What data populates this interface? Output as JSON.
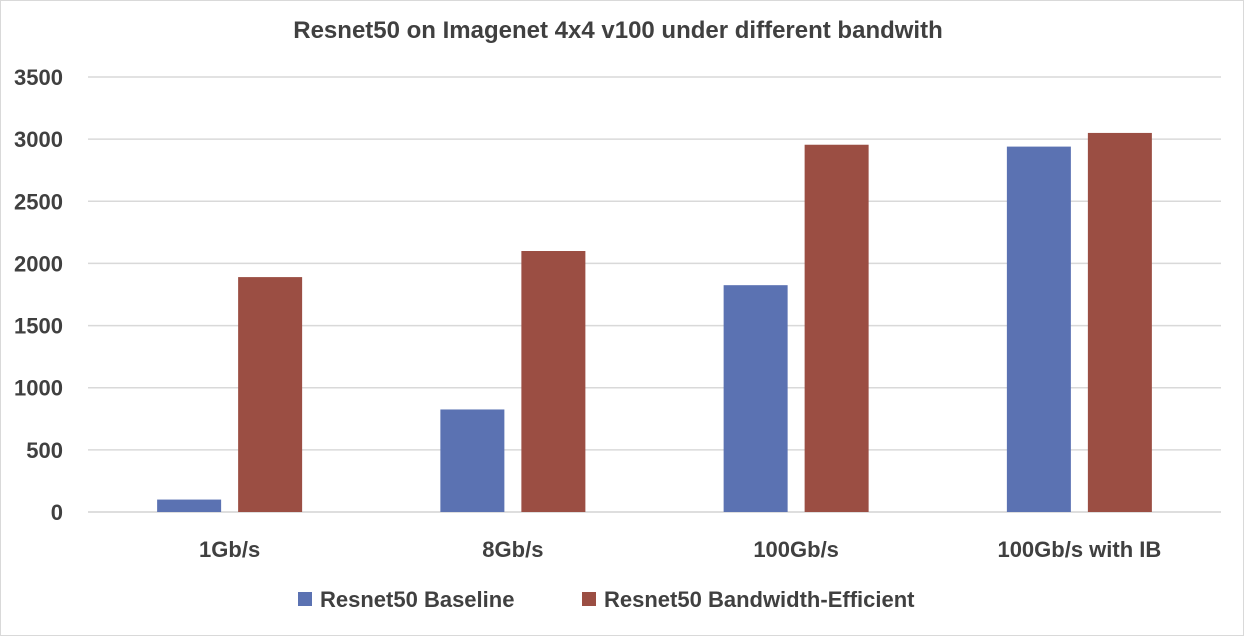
{
  "chart_data": {
    "type": "bar",
    "title": "Resnet50 on Imagenet 4x4 v100 under different bandwith",
    "xlabel": "",
    "ylabel": "",
    "categories": [
      "1Gb/s",
      "8Gb/s",
      "100Gb/s",
      "100Gb/s with IB"
    ],
    "series": [
      {
        "name": "Resnet50 Baseline",
        "values": [
          100,
          825,
          1825,
          2940
        ],
        "color": "#5b72b2"
      },
      {
        "name": "Resnet50 Bandwidth-Efficient",
        "values": [
          1890,
          2100,
          2955,
          3050
        ],
        "color": "#9b4e43"
      }
    ],
    "ylim": [
      0,
      3500
    ],
    "yticks": [
      0,
      500,
      1000,
      1500,
      2000,
      2500,
      3000,
      3500
    ],
    "grid": true,
    "gridline_color": "#d9d9d9",
    "legend_position": "bottom"
  }
}
